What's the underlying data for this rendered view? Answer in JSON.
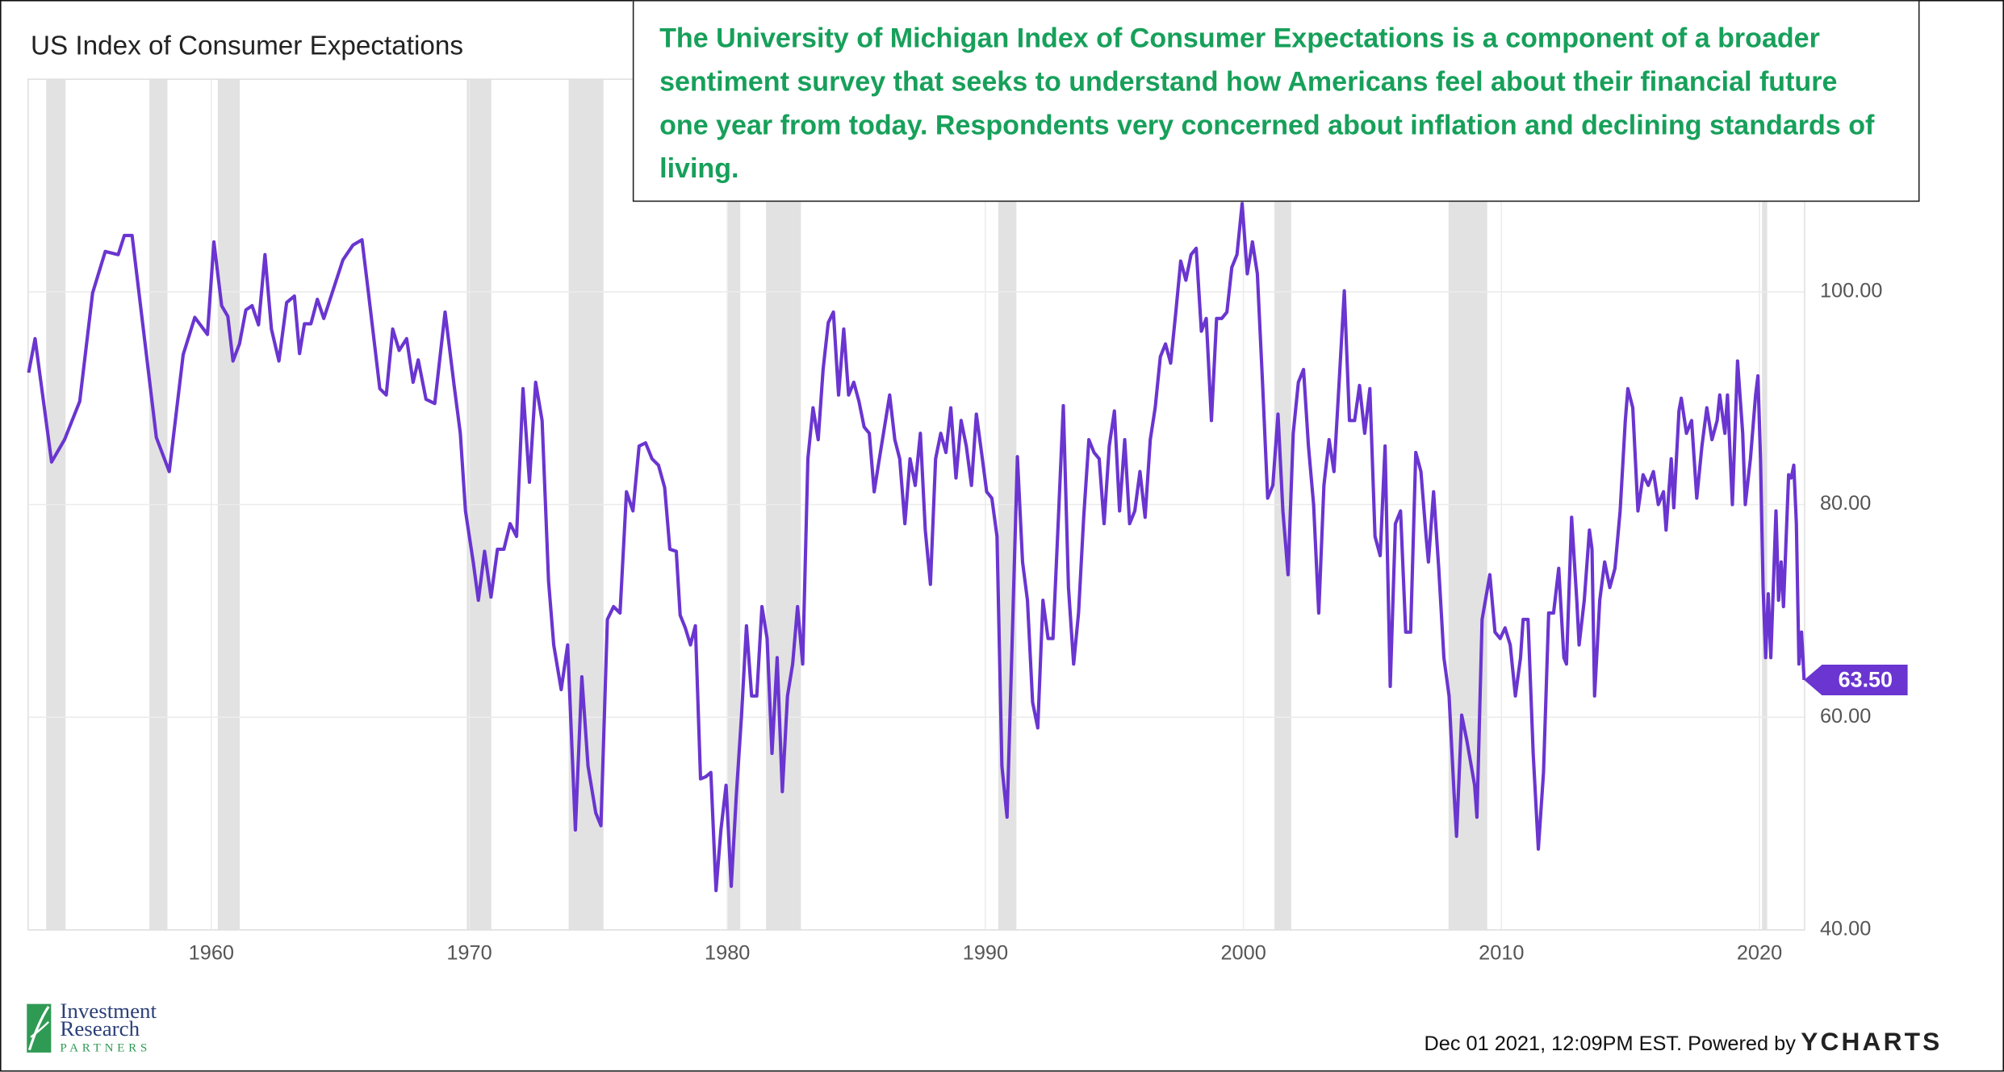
{
  "chart_data": {
    "type": "line",
    "title": "US Index of Consumer Expectations",
    "annotation": "The University of Michigan Index of Consumer Expectations is a component of a broader sentiment survey that seeks to understand how Americans feel about their financial future one year from today.  Respondents very concerned about inflation and declining standards of living.",
    "color": "#6a35d0",
    "shade_color": "#e2e2e2",
    "grid": true,
    "xlim": [
      1952.9,
      2021.75
    ],
    "xticks": [
      1960,
      1970,
      1980,
      1990,
      2000,
      2010,
      2020
    ],
    "ylim": [
      40,
      120
    ],
    "yticks": [
      {
        "value": 40,
        "label": "40.00"
      },
      {
        "value": 60,
        "label": "60.00"
      },
      {
        "value": 80,
        "label": "80.00"
      },
      {
        "value": 100,
        "label": "100.00"
      }
    ],
    "shaded_ranges": [
      [
        1953.6,
        1954.35
      ],
      [
        1957.6,
        1958.3
      ],
      [
        1960.25,
        1961.1
      ],
      [
        1969.9,
        1970.85
      ],
      [
        1973.85,
        1975.2
      ],
      [
        1980.0,
        1980.5
      ],
      [
        1981.5,
        1982.85
      ],
      [
        1990.5,
        1991.2
      ],
      [
        2001.2,
        2001.85
      ],
      [
        2007.95,
        2009.45
      ],
      [
        2020.1,
        2020.3
      ]
    ],
    "x": [
      1952.92,
      1953.17,
      1953.81,
      1954.31,
      1954.9,
      1955.4,
      1955.89,
      1956.39,
      1956.63,
      1956.93,
      1957.87,
      1958.37,
      1958.91,
      1959.36,
      1959.85,
      1960.1,
      1960.4,
      1960.64,
      1960.84,
      1961.09,
      1961.34,
      1961.58,
      1961.83,
      1962.08,
      1962.33,
      1962.62,
      1962.92,
      1963.22,
      1963.42,
      1963.61,
      1963.86,
      1964.11,
      1964.36,
      1965.1,
      1965.49,
      1965.84,
      1966.09,
      1966.53,
      1966.78,
      1967.03,
      1967.28,
      1967.57,
      1967.82,
      1968.02,
      1968.32,
      1968.66,
      1969.06,
      1969.41,
      1969.65,
      1969.85,
      1970.15,
      1970.35,
      1970.59,
      1970.84,
      1971.09,
      1971.34,
      1971.58,
      1971.83,
      1972.08,
      1972.33,
      1972.57,
      1972.82,
      1973.07,
      1973.27,
      1973.56,
      1973.81,
      1974.11,
      1974.36,
      1974.6,
      1974.9,
      1975.1,
      1975.35,
      1975.59,
      1975.84,
      1976.09,
      1976.34,
      1976.58,
      1976.83,
      1977.08,
      1977.33,
      1977.57,
      1977.77,
      1978.02,
      1978.17,
      1978.37,
      1978.57,
      1978.76,
      1978.96,
      1979.16,
      1979.36,
      1979.56,
      1979.75,
      1979.95,
      1980.15,
      1980.35,
      1980.55,
      1980.74,
      1980.94,
      1981.14,
      1981.34,
      1981.54,
      1981.73,
      1981.93,
      1982.13,
      1982.33,
      1982.53,
      1982.72,
      1982.92,
      1983.12,
      1983.32,
      1983.52,
      1983.71,
      1983.91,
      1984.11,
      1984.31,
      1984.51,
      1984.7,
      1984.9,
      1985.1,
      1985.3,
      1985.5,
      1985.69,
      1985.89,
      1986.09,
      1986.29,
      1986.49,
      1986.68,
      1986.88,
      1987.08,
      1987.28,
      1987.48,
      1987.67,
      1987.87,
      1988.07,
      1988.27,
      1988.47,
      1988.66,
      1988.86,
      1989.06,
      1989.26,
      1989.46,
      1989.65,
      1989.85,
      1990.05,
      1990.25,
      1990.45,
      1990.64,
      1990.84,
      1991.04,
      1991.24,
      1991.44,
      1991.63,
      1991.83,
      1992.03,
      1992.23,
      1992.43,
      1992.62,
      1992.82,
      1993.02,
      1993.22,
      1993.42,
      1993.61,
      1993.81,
      1994.01,
      1994.21,
      1994.41,
      1994.6,
      1994.8,
      1995.0,
      1995.2,
      1995.4,
      1995.59,
      1995.79,
      1995.99,
      1996.19,
      1996.39,
      1996.58,
      1996.78,
      1996.98,
      1997.18,
      1997.38,
      1997.57,
      1997.77,
      1997.97,
      1998.17,
      1998.37,
      1998.56,
      1998.76,
      1998.96,
      1999.16,
      1999.36,
      1999.55,
      1999.75,
      1999.95,
      2000.15,
      2000.35,
      2000.54,
      2000.74,
      2000.94,
      2001.14,
      2001.34,
      2001.53,
      2001.73,
      2001.93,
      2002.13,
      2002.33,
      2002.52,
      2002.72,
      2002.92,
      2003.12,
      2003.32,
      2003.51,
      2003.71,
      2003.91,
      2004.11,
      2004.31,
      2004.5,
      2004.7,
      2004.9,
      2005.1,
      2005.3,
      2005.49,
      2005.69,
      2005.89,
      2006.09,
      2006.29,
      2006.48,
      2006.68,
      2006.88,
      2007.08,
      2007.17,
      2007.37,
      2007.57,
      2007.77,
      2007.97,
      2008.16,
      2008.26,
      2008.46,
      2008.66,
      2008.96,
      2009.05,
      2009.25,
      2009.55,
      2009.75,
      2009.95,
      2010.14,
      2010.34,
      2010.54,
      2010.74,
      2010.84,
      2011.03,
      2011.23,
      2011.43,
      2011.63,
      2011.83,
      2012.02,
      2012.22,
      2012.42,
      2012.52,
      2012.72,
      2012.92,
      2013.01,
      2013.21,
      2013.41,
      2013.51,
      2013.61,
      2013.81,
      2014.0,
      2014.2,
      2014.4,
      2014.6,
      2014.8,
      2014.9,
      2015.09,
      2015.29,
      2015.49,
      2015.69,
      2015.89,
      2016.08,
      2016.28,
      2016.38,
      2016.58,
      2016.68,
      2016.88,
      2016.97,
      2017.17,
      2017.37,
      2017.57,
      2017.77,
      2017.96,
      2018.16,
      2018.36,
      2018.46,
      2018.66,
      2018.76,
      2018.95,
      2019.15,
      2019.35,
      2019.45,
      2019.65,
      2019.85,
      2019.94,
      2020.04,
      2020.14,
      2020.24,
      2020.34,
      2020.44,
      2020.64,
      2020.74,
      2020.84,
      2020.93,
      2021.13,
      2021.23,
      2021.33,
      2021.43,
      2021.53,
      2021.63,
      2021.73
    ],
    "values": [
      92.4,
      95.6,
      84.0,
      86.1,
      89.7,
      99.9,
      103.8,
      103.5,
      105.3,
      105.3,
      86.3,
      83.1,
      94.1,
      97.6,
      96.0,
      104.7,
      98.7,
      97.7,
      93.5,
      95.1,
      98.3,
      98.7,
      96.9,
      103.5,
      96.5,
      93.5,
      99.0,
      99.6,
      94.2,
      97.0,
      97.0,
      99.3,
      97.5,
      103.0,
      104.4,
      104.9,
      99.9,
      90.9,
      90.3,
      96.5,
      94.5,
      95.6,
      91.5,
      93.6,
      89.9,
      89.5,
      98.1,
      91.2,
      86.7,
      79.4,
      74.6,
      71.0,
      75.6,
      71.3,
      75.8,
      75.8,
      78.2,
      77.0,
      90.9,
      82.1,
      91.5,
      87.9,
      72.8,
      66.8,
      62.6,
      66.8,
      49.4,
      63.8,
      55.4,
      51.0,
      49.8,
      69.2,
      70.4,
      69.8,
      81.2,
      79.4,
      85.5,
      85.8,
      84.3,
      83.7,
      81.6,
      75.8,
      75.6,
      69.6,
      68.4,
      66.8,
      68.6,
      54.2,
      54.4,
      54.8,
      43.7,
      49.4,
      53.6,
      44.1,
      52.8,
      60.2,
      68.6,
      62.0,
      62.0,
      70.4,
      67.4,
      56.6,
      65.6,
      53.0,
      62.0,
      65.0,
      70.4,
      65.0,
      84.3,
      89.1,
      86.1,
      92.7,
      97.1,
      98.1,
      90.3,
      96.5,
      90.3,
      91.5,
      89.7,
      87.3,
      86.7,
      81.2,
      84.3,
      87.3,
      90.3,
      86.1,
      84.3,
      78.2,
      84.3,
      81.8,
      86.7,
      77.6,
      72.5,
      84.3,
      86.7,
      84.9,
      89.1,
      82.5,
      87.9,
      85.5,
      81.8,
      88.5,
      84.9,
      81.2,
      80.6,
      77.0,
      55.4,
      50.6,
      67.4,
      84.5,
      74.6,
      71.0,
      61.4,
      59.0,
      71.0,
      67.4,
      67.4,
      78.2,
      89.3,
      72.2,
      65.0,
      69.8,
      78.8,
      86.1,
      84.9,
      84.3,
      78.2,
      85.5,
      88.8,
      79.4,
      86.1,
      78.2,
      79.4,
      83.1,
      78.8,
      86.1,
      89.1,
      93.9,
      95.1,
      93.3,
      98.1,
      102.9,
      101.1,
      103.5,
      104.1,
      96.3,
      97.5,
      87.9,
      97.5,
      97.5,
      98.1,
      102.3,
      103.5,
      108.3,
      101.7,
      104.7,
      101.7,
      91.5,
      80.6,
      81.8,
      88.5,
      79.4,
      73.4,
      86.7,
      91.5,
      92.7,
      85.5,
      80.0,
      69.8,
      81.8,
      86.1,
      83.1,
      91.5,
      100.1,
      87.9,
      87.9,
      91.2,
      86.7,
      90.9,
      77.0,
      75.2,
      85.5,
      62.9,
      78.2,
      79.4,
      68.0,
      68.0,
      84.9,
      83.1,
      77.0,
      74.6,
      81.2,
      74.0,
      65.6,
      62.0,
      53.0,
      48.8,
      60.2,
      57.8,
      53.6,
      50.6,
      69.2,
      73.4,
      68.0,
      67.4,
      68.4,
      66.8,
      62.0,
      65.6,
      69.2,
      69.2,
      56.6,
      47.6,
      54.8,
      69.8,
      69.8,
      74.0,
      65.6,
      65.0,
      78.8,
      71.0,
      66.8,
      71.0,
      77.6,
      75.8,
      62.0,
      71.0,
      74.6,
      72.2,
      74.0,
      79.4,
      87.9,
      90.9,
      89.1,
      79.4,
      82.8,
      81.8,
      83.1,
      80.0,
      81.2,
      77.6,
      84.3,
      79.7,
      88.8,
      90.0,
      86.7,
      87.9,
      80.6,
      85.5,
      89.1,
      86.1,
      87.9,
      90.3,
      86.7,
      90.3,
      80.0,
      93.5,
      86.7,
      80.0,
      84.3,
      90.3,
      92.1,
      84.3,
      72.2,
      65.6,
      71.6,
      65.6,
      79.4,
      71.0,
      74.6,
      70.4,
      82.8,
      82.5,
      83.7,
      78.2,
      65.0,
      68.0,
      63.5
    ],
    "last_value_label": "63.50",
    "footer": "Dec 01 2021, 12:09PM EST. Powered by",
    "footer_brand": "YCHARTS",
    "logo": {
      "line1": "Investment",
      "line2": "Research",
      "line3": "PARTNERS"
    }
  }
}
